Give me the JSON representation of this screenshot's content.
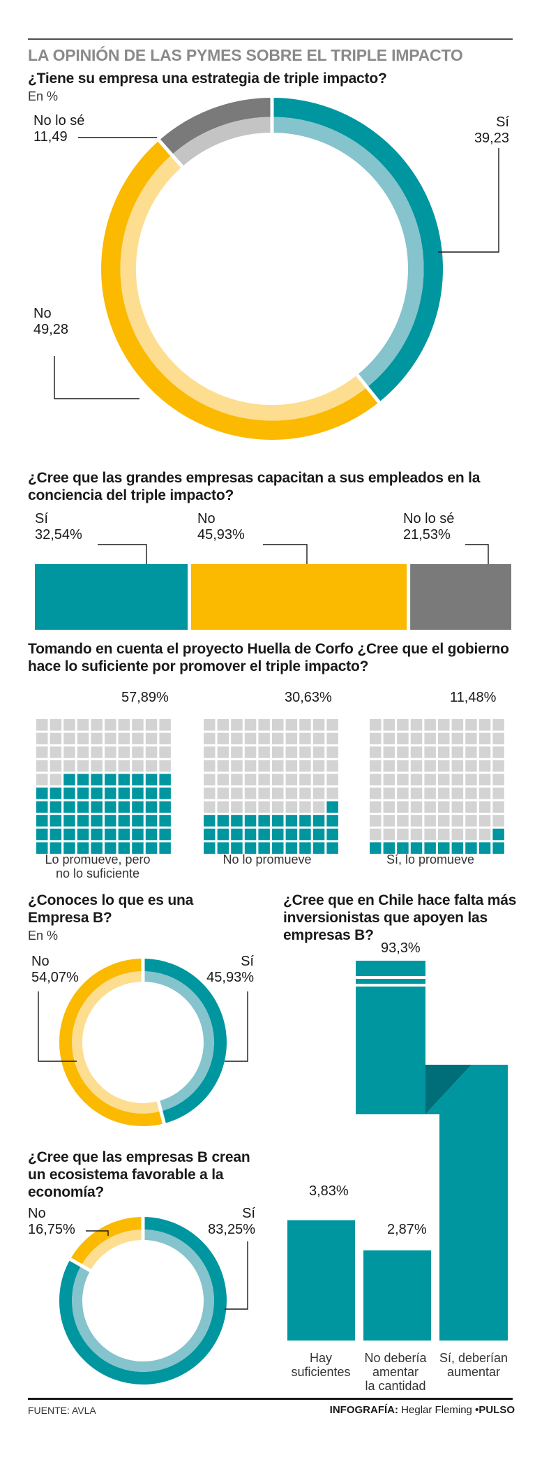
{
  "header": {
    "title": "LA OPINIÓN DE LAS PYMES SOBRE EL TRIPLE IMPACTO"
  },
  "colors": {
    "teal": "#0096a0",
    "teal_light": "#85c3cd",
    "yellow": "#fbb900",
    "yellow_light": "#fddd90",
    "gray": "#7a7a7a",
    "gray_light": "#c4c4c4",
    "grid_empty": "#d3d3d3"
  },
  "chart_data": [
    {
      "type": "pie",
      "title": "¿Tiene su empresa una estrategia de triple impacto?",
      "subtitle": "En %",
      "slices": [
        {
          "label": "Sí",
          "value": 39.23,
          "value_label": "39,23"
        },
        {
          "label": "No",
          "value": 49.28,
          "value_label": "49,28"
        },
        {
          "label": "No lo sé",
          "value": 11.49,
          "value_label": "11,49"
        }
      ]
    },
    {
      "type": "bar",
      "title": "¿Cree que las grandes empresas capacitan a sus empleados en la conciencia del triple impacto?",
      "categories": [
        "Sí",
        "No",
        "No lo sé"
      ],
      "values": [
        32.54,
        45.93,
        21.53
      ],
      "value_labels": [
        "32,54%",
        "45,93%",
        "21,53%"
      ]
    },
    {
      "type": "bar",
      "title": "Tomando en cuenta el proyecto Huella de  Corfo ¿Cree que el gobierno hace lo suficiente por promover el triple impacto?",
      "categories": [
        "Lo promueve, pero no lo suficiente",
        "No lo promueve",
        "Sí, lo promueve"
      ],
      "values": [
        57.89,
        30.63,
        11.48
      ],
      "value_labels": [
        "57,89%",
        "30,63%",
        "11,48%"
      ]
    },
    {
      "type": "pie",
      "title": "¿Conoces lo que es una Empresa B?",
      "subtitle": "En %",
      "slices": [
        {
          "label": "Sí",
          "value": 45.93,
          "value_label": "45,93%"
        },
        {
          "label": "No",
          "value": 54.07,
          "value_label": "54,07%"
        }
      ]
    },
    {
      "type": "pie",
      "title": "¿Cree que las empresas B crean un ecosistema favorable a la economía?",
      "slices": [
        {
          "label": "Sí",
          "value": 83.25,
          "value_label": "83,25%"
        },
        {
          "label": "No",
          "value": 16.75,
          "value_label": "16,75%"
        }
      ]
    },
    {
      "type": "bar",
      "title": "¿Cree que en Chile hace falta más inversionistas que apoyen las empresas B?",
      "categories": [
        "Hay suficientes",
        "No debería amentar la cantidad",
        "Sí, deberían aumentar"
      ],
      "values": [
        3.83,
        2.87,
        93.3
      ],
      "value_labels": [
        "3,83%",
        "2,87%",
        "93,3%"
      ]
    }
  ],
  "waffle_captions": [
    [
      "Lo promueve, pero",
      "no lo suficiente"
    ],
    [
      "No lo promueve"
    ],
    [
      "Sí, lo promueve"
    ]
  ],
  "invest_captions": [
    [
      "Hay",
      "suficientes"
    ],
    [
      "No debería",
      "amentar",
      "la cantidad"
    ],
    [
      "Sí, deberían",
      "aumentar"
    ]
  ],
  "q2_title_lines": [
    "¿Cree que las grandes empresas capacitan a sus empleados en la",
    "conciencia del triple impacto?"
  ],
  "q3_title_lines": [
    "Tomando en cuenta el proyecto Huella de  Corfo ¿Cree que el gobierno",
    "hace lo suficiente por promover el triple impacto?"
  ],
  "q4_title_lines": [
    "¿Conoces lo que es una",
    "Empresa B?"
  ],
  "q5_title_lines": [
    "¿Cree que en Chile hace falta más",
    "inversionistas que apoyen las",
    "empresas B?"
  ],
  "q6_title_lines": [
    "¿Cree que las empresas B crean",
    "un ecosistema favorable a la",
    "economía?"
  ],
  "footer": {
    "source": "FUENTE: AVLA",
    "credit_prefix": "INFOGRAFÍA:",
    "credit_name": "Heglar Fleming",
    "credit_brand": "•PULSO"
  }
}
